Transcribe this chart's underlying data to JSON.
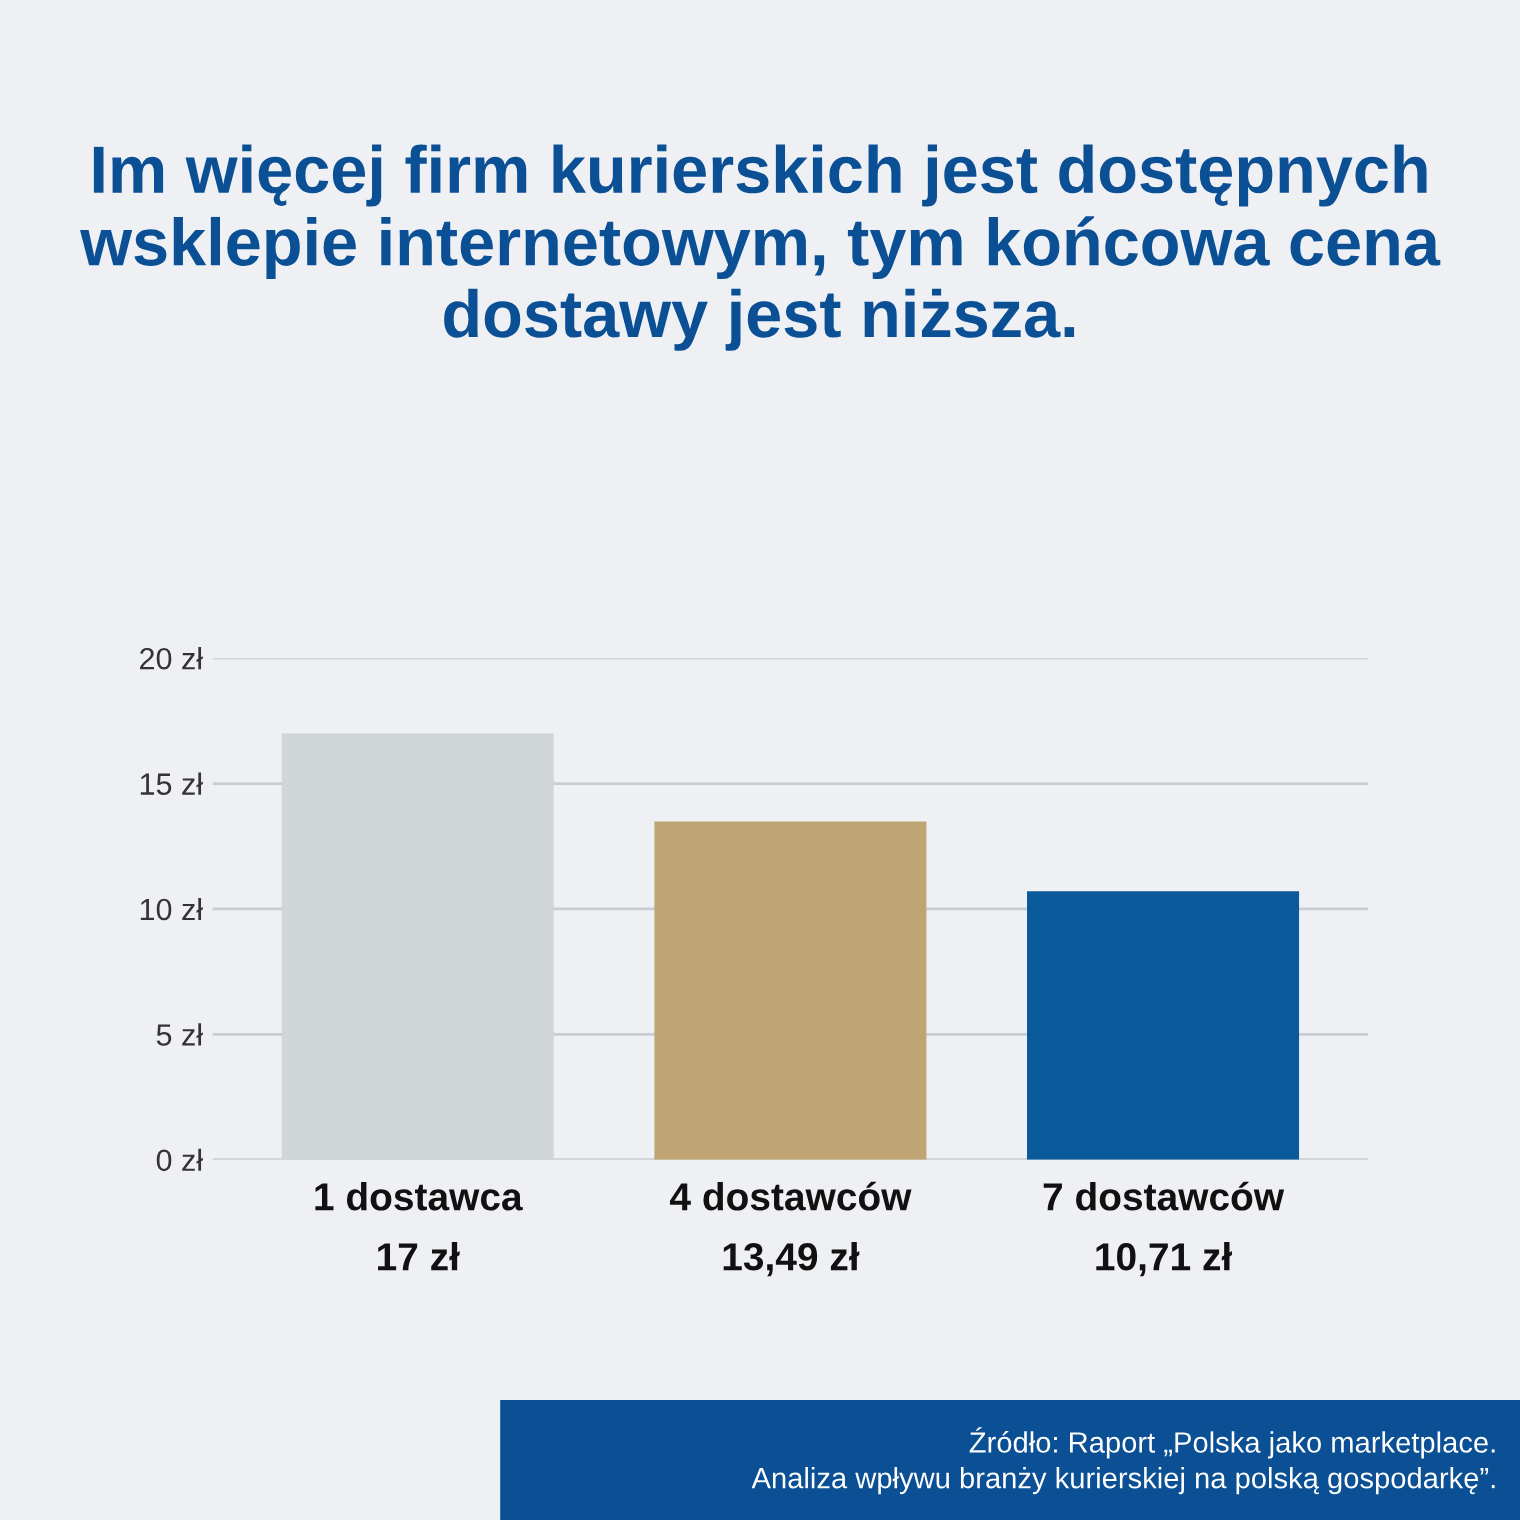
{
  "chart_data": {
    "type": "bar",
    "title": "Im więcej firm kurierskich jest dostępnych wsklepie internetowym, tym końcowa cena dostawy jest niższa.",
    "categories": [
      "1 dostawca",
      "4 dostawców",
      "7 dostawców"
    ],
    "values": [
      17,
      13.49,
      10.71
    ],
    "colors": [
      "#d0d5d6",
      "#bfa574",
      "#0a5a9c"
    ],
    "value_labels": [
      "17 zł",
      "13,49 zł",
      "10,71 zł"
    ],
    "ylim": [
      0,
      20
    ],
    "yticks": [
      {
        "value": 0,
        "label": "0 zł"
      },
      {
        "value": 5,
        "label": "5 zł"
      },
      {
        "value": 10,
        "label": "10 zł"
      },
      {
        "value": 15,
        "label": "15 zł"
      },
      {
        "value": 20,
        "label": "20 zł"
      }
    ],
    "grid": "y",
    "annotations": [
      "Źródło: Raport „Polska jako marketplace.\nAnaliza wpływu branży kurierskiej na polską gospodarkę”."
    ]
  }
}
